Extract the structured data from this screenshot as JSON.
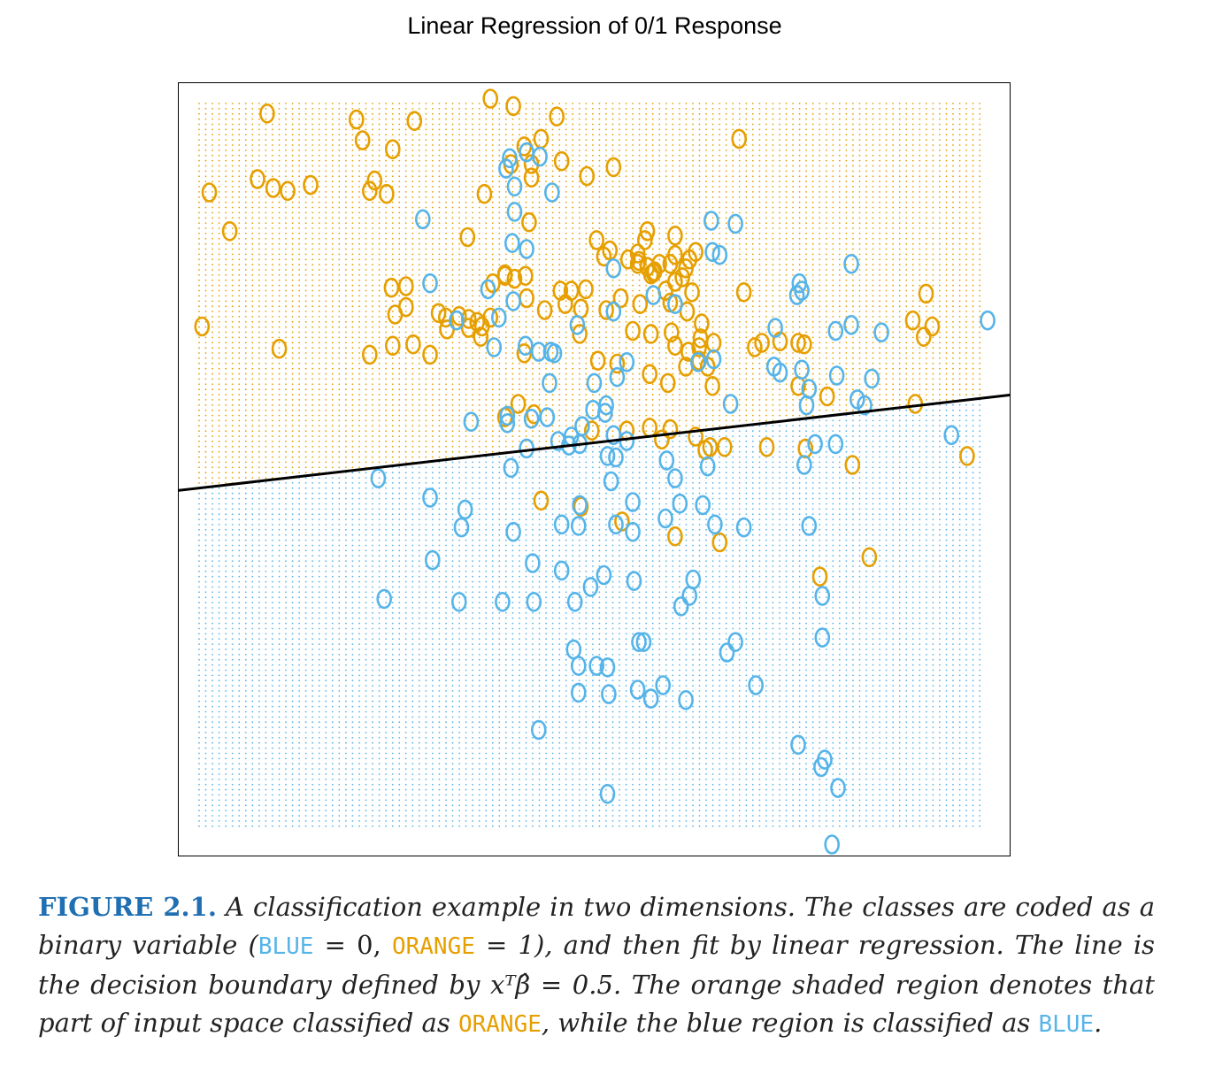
{
  "chart_data": {
    "type": "scatter",
    "title": "Linear Regression of 0/1 Response",
    "xlim": [
      -2.6,
      4.3
    ],
    "ylim": [
      -2.2,
      3.0
    ],
    "grid_shading": "decision regions",
    "colors": {
      "orange": "#E69F00",
      "blue": "#56B4E9",
      "boundary": "#000000"
    },
    "marker": "O",
    "decision_boundary": {
      "intercept": 0.5,
      "slope": 0.093
    },
    "series": [
      {
        "class": "ORANGE",
        "color": "#E69F00",
        "points": [
          [
            -1.86,
            2.79
          ],
          [
            -1.12,
            2.75
          ],
          [
            -1.07,
            2.61
          ],
          [
            -0.64,
            2.74
          ],
          [
            -0.01,
            2.89
          ],
          [
            0.18,
            2.84
          ],
          [
            0.54,
            2.77
          ],
          [
            0.41,
            2.62
          ],
          [
            2.05,
            2.62
          ],
          [
            0.27,
            2.57
          ],
          [
            -0.82,
            2.55
          ],
          [
            0.33,
            2.45
          ],
          [
            0.16,
            2.45
          ],
          [
            0.58,
            2.47
          ],
          [
            1.01,
            2.43
          ],
          [
            -1.94,
            2.35
          ],
          [
            -0.97,
            2.34
          ],
          [
            0.33,
            2.36
          ],
          [
            0.79,
            2.37
          ],
          [
            -2.34,
            2.26
          ],
          [
            -1.81,
            2.29
          ],
          [
            -1.69,
            2.27
          ],
          [
            -1.5,
            2.31
          ],
          [
            -1.01,
            2.27
          ],
          [
            -0.87,
            2.25
          ],
          [
            -0.06,
            2.25
          ],
          [
            0.31,
            2.06
          ],
          [
            1.29,
            2.0
          ],
          [
            1.52,
            1.97
          ],
          [
            -2.17,
            2.0
          ],
          [
            -0.2,
            1.96
          ],
          [
            0.87,
            1.94
          ],
          [
            1.27,
            1.94
          ],
          [
            1.21,
            1.85
          ],
          [
            0.98,
            1.87
          ],
          [
            0.93,
            1.83
          ],
          [
            1.13,
            1.81
          ],
          [
            1.52,
            1.84
          ],
          [
            1.39,
            1.78
          ],
          [
            0.11,
            1.71
          ],
          [
            0.19,
            1.68
          ],
          [
            1.35,
            1.73
          ],
          [
            1.48,
            1.78
          ],
          [
            1.61,
            1.75
          ],
          [
            1.32,
            1.71
          ],
          [
            1.29,
            1.76
          ],
          [
            1.21,
            1.78
          ],
          [
            1.64,
            1.81
          ],
          [
            1.69,
            1.86
          ],
          [
            1.22,
            1.8
          ],
          [
            1.34,
            1.72
          ],
          [
            -0.83,
            1.62
          ],
          [
            -0.71,
            1.63
          ],
          [
            0.01,
            1.65
          ],
          [
            0.11,
            1.7
          ],
          [
            0.28,
            1.7
          ],
          [
            0.57,
            1.6
          ],
          [
            0.66,
            1.6
          ],
          [
            0.78,
            1.61
          ],
          [
            1.07,
            1.55
          ],
          [
            1.44,
            1.6
          ],
          [
            1.66,
            1.59
          ],
          [
            2.09,
            1.59
          ],
          [
            1.58,
            1.69
          ],
          [
            1.52,
            1.66
          ],
          [
            3.6,
            1.58
          ],
          [
            -0.8,
            1.44
          ],
          [
            -0.71,
            1.49
          ],
          [
            0.29,
            1.55
          ],
          [
            0.44,
            1.47
          ],
          [
            0.61,
            1.51
          ],
          [
            0.74,
            1.48
          ],
          [
            0.95,
            1.47
          ],
          [
            1.23,
            1.51
          ],
          [
            1.48,
            1.52
          ],
          [
            1.62,
            1.46
          ],
          [
            1.74,
            1.38
          ],
          [
            3.49,
            1.4
          ],
          [
            -0.44,
            1.45
          ],
          [
            -0.38,
            1.42
          ],
          [
            -0.27,
            1.43
          ],
          [
            -0.19,
            1.41
          ],
          [
            -0.12,
            1.39
          ],
          [
            -0.08,
            1.36
          ],
          [
            -0.01,
            1.42
          ],
          [
            -0.37,
            1.34
          ],
          [
            -0.19,
            1.35
          ],
          [
            -0.09,
            1.29
          ],
          [
            0.73,
            1.31
          ],
          [
            1.17,
            1.33
          ],
          [
            1.32,
            1.31
          ],
          [
            1.49,
            1.32
          ],
          [
            1.73,
            1.28
          ],
          [
            1.84,
            1.25
          ],
          [
            2.24,
            1.25
          ],
          [
            2.39,
            1.26
          ],
          [
            2.54,
            1.25
          ],
          [
            3.65,
            1.36
          ],
          [
            3.58,
            1.29
          ],
          [
            -2.4,
            1.36
          ],
          [
            -0.65,
            1.24
          ],
          [
            -0.82,
            1.23
          ],
          [
            0.27,
            1.18
          ],
          [
            1.52,
            1.23
          ],
          [
            1.63,
            1.19
          ],
          [
            1.72,
            1.22
          ],
          [
            2.18,
            1.22
          ],
          [
            2.59,
            1.24
          ],
          [
            1.72,
            1.13
          ],
          [
            1.61,
            1.09
          ],
          [
            1.79,
            1.09
          ],
          [
            0.88,
            1.13
          ],
          [
            1.04,
            1.11
          ],
          [
            -1.01,
            1.17
          ],
          [
            -1.76,
            1.21
          ],
          [
            -0.51,
            1.17
          ],
          [
            1.31,
            1.04
          ],
          [
            1.46,
            0.98
          ],
          [
            1.83,
            0.96
          ],
          [
            2.54,
            0.96
          ],
          [
            2.78,
            0.89
          ],
          [
            3.51,
            0.84
          ],
          [
            0.22,
            0.84
          ],
          [
            0.35,
            0.77
          ],
          [
            0.11,
            0.75
          ],
          [
            0.83,
            0.66
          ],
          [
            1.12,
            0.66
          ],
          [
            1.31,
            0.68
          ],
          [
            1.41,
            0.6
          ],
          [
            1.48,
            0.67
          ],
          [
            1.69,
            0.62
          ],
          [
            1.77,
            0.53
          ],
          [
            1.81,
            0.55
          ],
          [
            1.93,
            0.55
          ],
          [
            2.28,
            0.55
          ],
          [
            2.6,
            0.54
          ],
          [
            2.99,
            0.43
          ],
          [
            3.94,
            0.49
          ],
          [
            0.41,
            0.19
          ],
          [
            0.74,
            0.15
          ],
          [
            1.08,
            0.05
          ],
          [
            1.52,
            -0.05
          ],
          [
            1.89,
            -0.09
          ],
          [
            3.13,
            -0.19
          ],
          [
            2.72,
            -0.32
          ]
        ]
      },
      {
        "class": "BLUE",
        "color": "#56B4E9",
        "points": [
          [
            0.15,
            2.49
          ],
          [
            0.4,
            2.5
          ],
          [
            0.29,
            2.53
          ],
          [
            0.12,
            2.42
          ],
          [
            0.19,
            2.3
          ],
          [
            0.5,
            2.26
          ],
          [
            0.19,
            2.13
          ],
          [
            -0.57,
            2.08
          ],
          [
            1.82,
            2.07
          ],
          [
            2.02,
            2.05
          ],
          [
            0.17,
            1.92
          ],
          [
            0.29,
            1.88
          ],
          [
            1.83,
            1.86
          ],
          [
            1.89,
            1.84
          ],
          [
            2.98,
            1.78
          ],
          [
            1.01,
            1.75
          ],
          [
            -0.51,
            1.65
          ],
          [
            -0.03,
            1.61
          ],
          [
            0.18,
            1.53
          ],
          [
            1.34,
            1.57
          ],
          [
            1.52,
            1.51
          ],
          [
            2.53,
            1.57
          ],
          [
            2.57,
            1.6
          ],
          [
            2.55,
            1.65
          ],
          [
            -0.29,
            1.4
          ],
          [
            0.06,
            1.42
          ],
          [
            0.71,
            1.37
          ],
          [
            1.01,
            1.46
          ],
          [
            2.35,
            1.35
          ],
          [
            2.85,
            1.33
          ],
          [
            3.23,
            1.32
          ],
          [
            2.98,
            1.37
          ],
          [
            4.11,
            1.4
          ],
          [
            0.02,
            1.22
          ],
          [
            0.28,
            1.23
          ],
          [
            0.39,
            1.19
          ],
          [
            0.49,
            1.19
          ],
          [
            0.52,
            1.18
          ],
          [
            1.84,
            1.14
          ],
          [
            2.34,
            1.09
          ],
          [
            2.57,
            1.07
          ],
          [
            2.86,
            1.03
          ],
          [
            3.15,
            1.01
          ],
          [
            0.48,
            0.98
          ],
          [
            0.85,
            0.98
          ],
          [
            1.04,
            1.02
          ],
          [
            1.12,
            1.12
          ],
          [
            1.71,
            1.12
          ],
          [
            2.39,
            1.05
          ],
          [
            2.63,
            0.94
          ],
          [
            3.03,
            0.87
          ],
          [
            3.09,
            0.83
          ],
          [
            0.84,
            0.8
          ],
          [
            0.94,
            0.78
          ],
          [
            0.95,
            0.83
          ],
          [
            1.98,
            0.84
          ],
          [
            2.61,
            0.83
          ],
          [
            0.46,
            0.75
          ],
          [
            0.75,
            0.69
          ],
          [
            0.33,
            0.74
          ],
          [
            0.13,
            0.76
          ],
          [
            0.13,
            0.71
          ],
          [
            -0.17,
            0.72
          ],
          [
            0.66,
            0.62
          ],
          [
            0.55,
            0.59
          ],
          [
            0.73,
            0.57
          ],
          [
            1.01,
            0.63
          ],
          [
            1.12,
            0.59
          ],
          [
            2.68,
            0.57
          ],
          [
            2.85,
            0.57
          ],
          [
            3.81,
            0.63
          ],
          [
            0.29,
            0.54
          ],
          [
            0.64,
            0.56
          ],
          [
            0.96,
            0.49
          ],
          [
            1.03,
            0.48
          ],
          [
            1.45,
            0.46
          ],
          [
            1.79,
            0.42
          ],
          [
            2.59,
            0.43
          ],
          [
            0.16,
            0.41
          ],
          [
            0.99,
            0.32
          ],
          [
            1.52,
            0.34
          ],
          [
            -0.94,
            0.34
          ],
          [
            -0.51,
            0.21
          ],
          [
            -0.25,
            0.01
          ],
          [
            -0.22,
            0.13
          ],
          [
            0.73,
            0.16
          ],
          [
            1.17,
            0.18
          ],
          [
            1.56,
            0.17
          ],
          [
            1.75,
            0.16
          ],
          [
            1.85,
            0.03
          ],
          [
            0.18,
            -0.02
          ],
          [
            0.58,
            0.03
          ],
          [
            0.72,
            0.02
          ],
          [
            1.03,
            0.03
          ],
          [
            1.17,
            -0.02
          ],
          [
            1.44,
            0.07
          ],
          [
            2.09,
            0.01
          ],
          [
            2.63,
            0.02
          ],
          [
            -0.49,
            -0.21
          ],
          [
            0.34,
            -0.23
          ],
          [
            0.58,
            -0.28
          ],
          [
            0.93,
            -0.31
          ],
          [
            0.82,
            -0.39
          ],
          [
            1.18,
            -0.35
          ],
          [
            1.67,
            -0.34
          ],
          [
            -0.89,
            -0.47
          ],
          [
            -0.27,
            -0.49
          ],
          [
            0.09,
            -0.49
          ],
          [
            0.35,
            -0.49
          ],
          [
            0.69,
            -0.49
          ],
          [
            1.64,
            -0.45
          ],
          [
            1.57,
            -0.52
          ],
          [
            2.74,
            -0.45
          ],
          [
            1.22,
            -0.76
          ],
          [
            1.26,
            -0.76
          ],
          [
            2.02,
            -0.76
          ],
          [
            2.74,
            -0.73
          ],
          [
            1.95,
            -0.83
          ],
          [
            0.68,
            -0.81
          ],
          [
            0.72,
            -0.92
          ],
          [
            0.87,
            -0.92
          ],
          [
            0.96,
            -0.93
          ],
          [
            0.72,
            -1.1
          ],
          [
            0.97,
            -1.11
          ],
          [
            1.21,
            -1.08
          ],
          [
            1.42,
            -1.05
          ],
          [
            1.61,
            -1.15
          ],
          [
            1.32,
            -1.14
          ],
          [
            2.19,
            -1.05
          ],
          [
            0.39,
            -1.35
          ],
          [
            2.54,
            -1.45
          ],
          [
            2.76,
            -1.55
          ],
          [
            2.73,
            -1.6
          ],
          [
            2.87,
            -1.74
          ],
          [
            0.96,
            -1.78
          ],
          [
            2.82,
            -2.12
          ]
        ]
      }
    ]
  },
  "caption": {
    "label": "FIGURE 2.1.",
    "t1": " A classification example in two dimensions. The classes are coded as a binary variable (",
    "blue": "BLUE",
    "t2": " = 0, ",
    "orange": "ORANGE",
    "t3": " = 1), and then fit by linear regression. The line is the decision boundary defined by ",
    "math": "xᵀβ̂ = 0.5",
    "t4": ". The orange shaded region denotes that part of input space classified as ",
    "orange2": "ORANGE",
    "t5": ", while the blue region is classified as ",
    "blue2": "BLUE",
    "t6": "."
  }
}
